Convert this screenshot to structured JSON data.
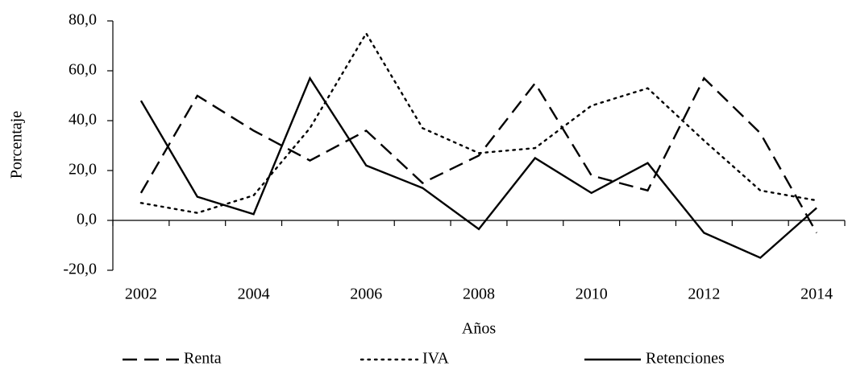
{
  "chart_data": {
    "type": "line",
    "x_label": "Años",
    "y_label": "Porcentaje",
    "categories": [
      "2002",
      null,
      "2004",
      null,
      "2006",
      null,
      "2008",
      null,
      "2010",
      null,
      "2012",
      null,
      "2014"
    ],
    "series": [
      {
        "name": "Renta",
        "color": "#000000",
        "dash": "dashed",
        "values": [
          11,
          50,
          36,
          24,
          36,
          15,
          26,
          55,
          18,
          12,
          57,
          35,
          -5
        ]
      },
      {
        "name": "IVA",
        "color": "#000000",
        "dash": "dotted",
        "values": [
          7,
          3,
          10,
          37,
          75,
          37,
          27,
          29,
          46,
          53,
          32,
          12,
          8
        ]
      },
      {
        "name": "Retenciones",
        "color": "#000000",
        "dash": "solid",
        "values": [
          48,
          9.5,
          2.5,
          57,
          22,
          13,
          -3.5,
          25,
          11,
          23,
          -5,
          -15,
          5
        ]
      }
    ],
    "ylim": [
      -20,
      80
    ],
    "yticks": [
      {
        "value": -20,
        "label": "-20,0"
      },
      {
        "value": 0,
        "label": "0,0"
      },
      {
        "value": 20,
        "label": "20,0"
      },
      {
        "value": 40,
        "label": "40,0"
      },
      {
        "value": 60,
        "label": "60,0"
      },
      {
        "value": 80,
        "label": "80,0"
      }
    ],
    "legend": "bottom"
  }
}
